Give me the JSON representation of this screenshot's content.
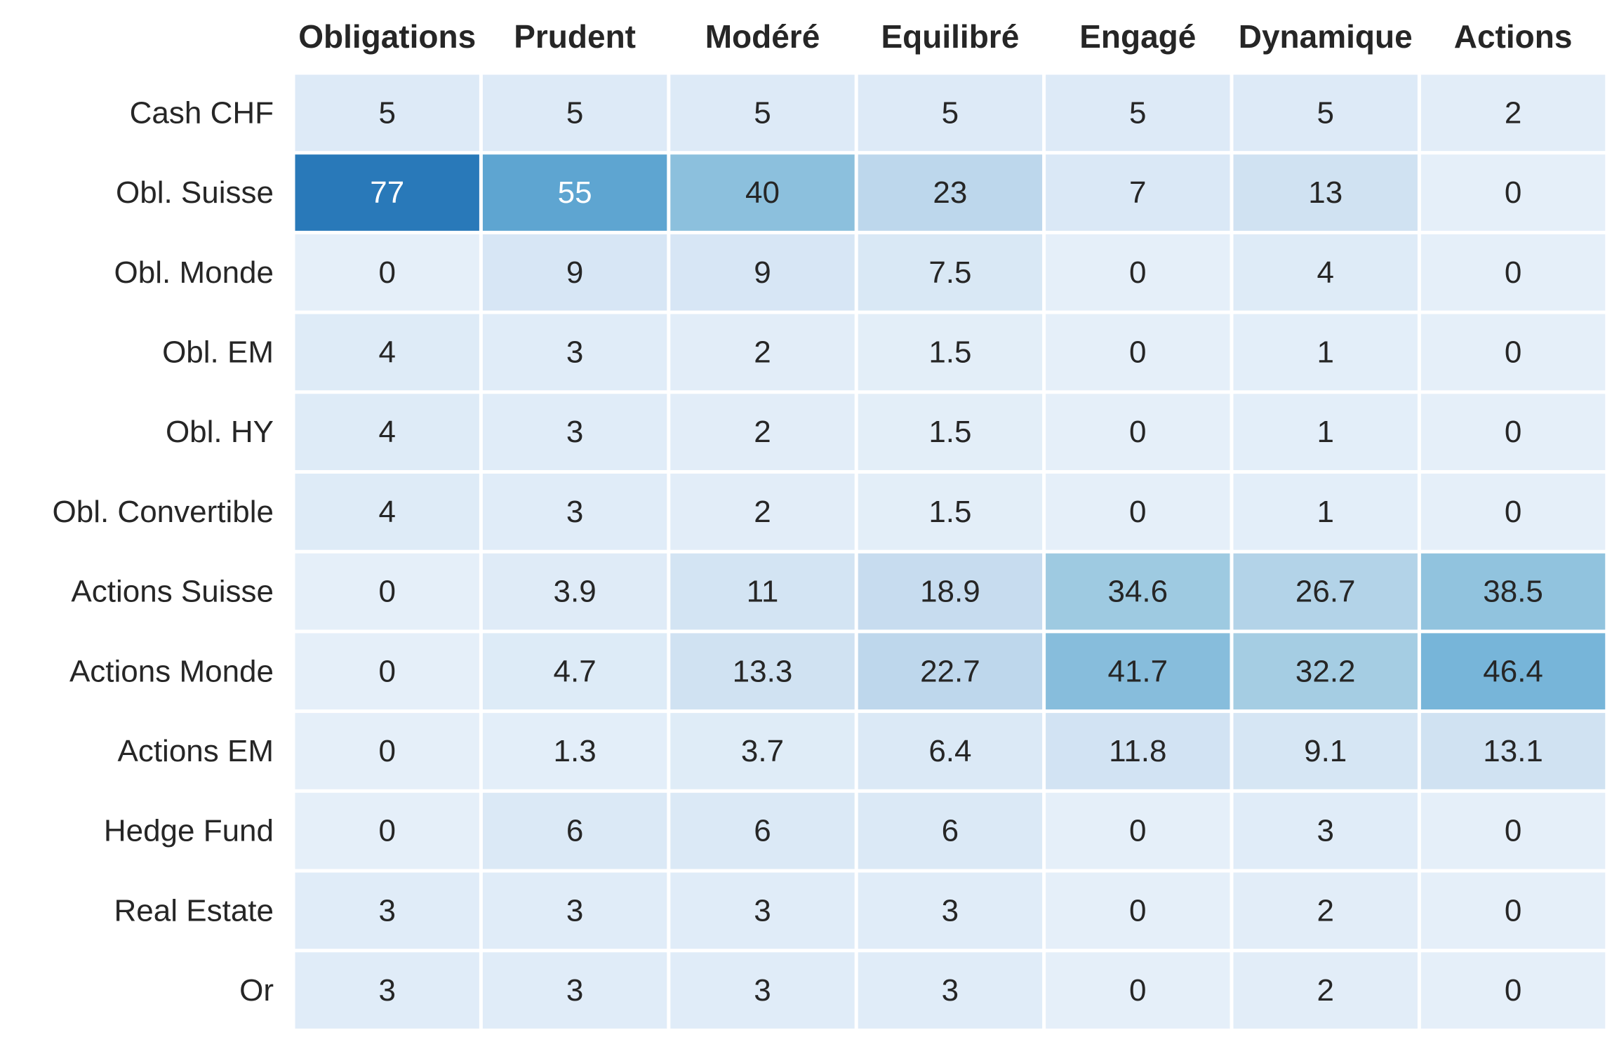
{
  "chart_data": {
    "type": "heatmap",
    "columns": [
      "Obligations",
      "Prudent",
      "Modéré",
      "Equilibré",
      "Engagé",
      "Dynamique",
      "Actions"
    ],
    "rows": [
      "Cash CHF",
      "Obl. Suisse",
      "Obl. Monde",
      "Obl. EM",
      "Obl. HY",
      "Obl. Convertible",
      "Actions Suisse",
      "Actions Monde",
      "Actions EM",
      "Hedge Fund",
      "Real Estate",
      "Or"
    ],
    "values": [
      [
        5,
        5,
        5,
        5,
        5,
        5,
        2
      ],
      [
        77,
        55,
        40,
        23,
        7,
        13,
        0
      ],
      [
        0,
        9,
        9,
        7.5,
        0,
        4,
        0
      ],
      [
        4,
        3,
        2,
        1.5,
        0,
        1,
        0
      ],
      [
        4,
        3,
        2,
        1.5,
        0,
        1,
        0
      ],
      [
        4,
        3,
        2,
        1.5,
        0,
        1,
        0
      ],
      [
        0,
        3.9,
        11,
        18.9,
        34.6,
        26.7,
        38.5
      ],
      [
        0,
        4.7,
        13.3,
        22.7,
        41.7,
        32.2,
        46.4
      ],
      [
        0,
        1.3,
        3.7,
        6.4,
        11.8,
        9.1,
        13.1
      ],
      [
        0,
        6,
        6,
        6,
        0,
        3,
        0
      ],
      [
        3,
        3,
        3,
        3,
        0,
        2,
        0
      ],
      [
        3,
        3,
        3,
        3,
        0,
        2,
        0
      ]
    ],
    "value_labels": [
      [
        "5",
        "5",
        "5",
        "5",
        "5",
        "5",
        "2"
      ],
      [
        "77",
        "55",
        "40",
        "23",
        "7",
        "13",
        "0"
      ],
      [
        "0",
        "9",
        "9",
        "7.5",
        "0",
        "4",
        "0"
      ],
      [
        "4",
        "3",
        "2",
        "1.5",
        "0",
        "1",
        "0"
      ],
      [
        "4",
        "3",
        "2",
        "1.5",
        "0",
        "1",
        "0"
      ],
      [
        "4",
        "3",
        "2",
        "1.5",
        "0",
        "1",
        "0"
      ],
      [
        "0",
        "3.9",
        "11",
        "18.9",
        "34.6",
        "26.7",
        "38.5"
      ],
      [
        "0",
        "4.7",
        "13.3",
        "22.7",
        "41.7",
        "32.2",
        "46.4"
      ],
      [
        "0",
        "1.3",
        "3.7",
        "6.4",
        "11.8",
        "9.1",
        "13.1"
      ],
      [
        "0",
        "6",
        "6",
        "6",
        "0",
        "3",
        "0"
      ],
      [
        "3",
        "3",
        "3",
        "3",
        "0",
        "2",
        "0"
      ],
      [
        "3",
        "3",
        "3",
        "3",
        "0",
        "2",
        "0"
      ]
    ],
    "colormap": "Blues",
    "color_range": [
      0,
      100
    ],
    "cell_border_color": "#ffffff",
    "text_color_dark": "#262626",
    "text_color_light": "#ffffff",
    "colorbar": false,
    "x_tick_position": "top"
  }
}
